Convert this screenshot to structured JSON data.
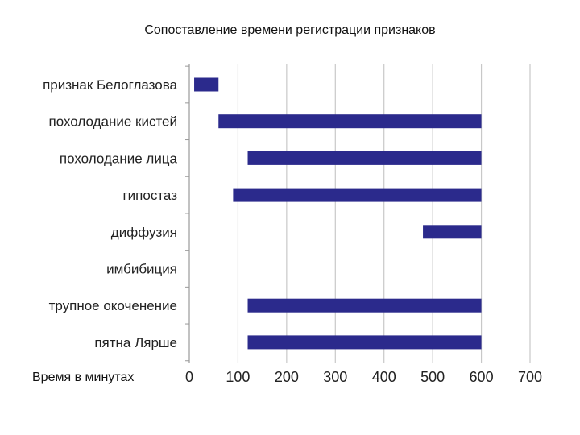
{
  "chart_data": {
    "type": "bar",
    "orientation": "horizontal",
    "title": "Сопоставление времени регистрации признаков",
    "xlabel": "Время в минутах",
    "ylabel": "",
    "xlim": [
      0,
      700
    ],
    "xticks": [
      0,
      100,
      200,
      300,
      400,
      500,
      600,
      700
    ],
    "grid": true,
    "colors": {
      "bar": "#2b2a8c",
      "grid": "#c8c8c8",
      "axis": "#999999"
    },
    "categories": [
      "признак Белоглазова",
      "похолодание кистей",
      "похолодание лица",
      "гипостаз",
      "диффузия",
      "имбибиция",
      "трупное окоченение",
      "пятна Лярше"
    ],
    "ranges": [
      [
        10,
        60
      ],
      [
        60,
        600
      ],
      [
        120,
        600
      ],
      [
        90,
        600
      ],
      [
        480,
        600
      ],
      null,
      [
        120,
        600
      ],
      [
        120,
        600
      ]
    ]
  }
}
